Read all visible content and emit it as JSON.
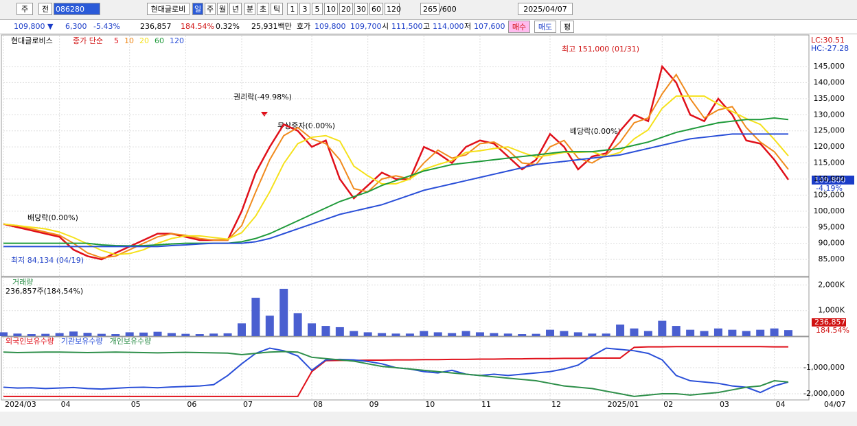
{
  "toolbar": {
    "period_code": "주",
    "mode": "전",
    "code": "086280",
    "name": "현대글로비",
    "tabs": [
      "일",
      "주",
      "월",
      "년",
      "분",
      "초",
      "틱"
    ],
    "intervals": [
      "1",
      "3",
      "5",
      "10",
      "20",
      "30",
      "60",
      "120"
    ],
    "count": "265",
    "count_max": "/600",
    "date": "2025/04/07"
  },
  "quote": {
    "price": "109,800 ▼",
    "change": "6,300",
    "change_pct": "-5.43%",
    "volume": "236,857",
    "volume_ratio": "184.54%",
    "turnover": "0.32%",
    "amount": "25,931백만",
    "ask_label": "호가",
    "ask": "109,800",
    "bid": "109,700",
    "open_label": "시",
    "open": "111,500",
    "high_label": "고",
    "high": "114,000",
    "low_label": "저",
    "low": "107,600",
    "buy": "매수",
    "sell": "매도",
    "avg": "평"
  },
  "chart_data": [
    {
      "type": "line",
      "title": "현대글로비스",
      "legend_title": "종가 단순",
      "lc": "LC:30.51",
      "hc": "HC:-27.28",
      "price_tag": "109,800",
      "change_tag": "-4.19%",
      "annotations": {
        "rights": "권리락(-49.98%)",
        "bonus": "무상증자(0.00%)",
        "div1": "배당락(0.00%)",
        "div2": "배당락(0.00%)",
        "high": "최고 151,000 (01/31)",
        "low": "최저 84,134 (04/19)"
      },
      "ylim": [
        79900,
        154600
      ],
      "grid": true,
      "yticks": [
        {
          "value": 85000,
          "label": "85,000"
        },
        {
          "value": 90000,
          "label": "90,000"
        },
        {
          "value": 95000,
          "label": "95,000"
        },
        {
          "value": 100000,
          "label": "100,000"
        },
        {
          "value": 105000,
          "label": "105,000"
        },
        {
          "value": 110000,
          "label": "110,000"
        },
        {
          "value": 115000,
          "label": "115,000"
        },
        {
          "value": 120000,
          "label": "120,000"
        },
        {
          "value": 125000,
          "label": "125,000"
        },
        {
          "value": 130000,
          "label": "130,000"
        },
        {
          "value": 135000,
          "label": "135,000"
        },
        {
          "value": 140000,
          "label": "140,000"
        },
        {
          "value": 145000,
          "label": "145,000"
        }
      ],
      "series": [
        {
          "name": "5",
          "color": "#e0101a",
          "values": [
            96000,
            95000,
            94000,
            93000,
            92000,
            88000,
            86000,
            85000,
            87000,
            89000,
            91000,
            93000,
            93000,
            92000,
            91000,
            91000,
            91000,
            100000,
            112000,
            120000,
            127000,
            125000,
            120000,
            122000,
            110000,
            104000,
            108000,
            112000,
            110000,
            110000,
            120000,
            118000,
            115000,
            120000,
            122000,
            121000,
            117000,
            113000,
            116000,
            124000,
            120000,
            113000,
            117000,
            118000,
            125000,
            130000,
            128000,
            145000,
            140000,
            130000,
            128000,
            135000,
            130000,
            122000,
            121000,
            116000,
            109800
          ]
        },
        {
          "name": "10",
          "color": "#f08a1c",
          "values": [
            96000,
            95500,
            94500,
            93500,
            92500,
            90000,
            87000,
            85500,
            86000,
            88000,
            90000,
            92000,
            93000,
            92500,
            91500,
            91000,
            91000,
            95500,
            106000,
            116000,
            123500,
            126000,
            122500,
            121000,
            116000,
            107000,
            106000,
            110000,
            111000,
            110000,
            115000,
            119000,
            116500,
            117500,
            121000,
            121500,
            119000,
            115000,
            114500,
            120000,
            122000,
            116500,
            115000,
            117500,
            121500,
            127500,
            129000,
            136500,
            142500,
            135000,
            129000,
            131500,
            132500,
            126000,
            121500,
            118500,
            113000
          ]
        },
        {
          "name": "20",
          "color": "#f5e11a",
          "values": [
            96000,
            95500,
            95000,
            94500,
            93500,
            91800,
            89800,
            87800,
            86500,
            86800,
            88000,
            90000,
            91500,
            92300,
            92300,
            91800,
            91300,
            93300,
            98500,
            106000,
            114800,
            121000,
            123000,
            123500,
            121800,
            114000,
            111000,
            108500,
            108500,
            110000,
            113000,
            114500,
            115800,
            118300,
            118800,
            119500,
            120000,
            118300,
            116800,
            117500,
            118300,
            118300,
            118500,
            117000,
            118300,
            122500,
            125300,
            132000,
            135800,
            135800,
            135800,
            133300,
            131000,
            128800,
            127000,
            122300,
            117200
          ]
        },
        {
          "name": "60",
          "color": "#1f9a3a",
          "values": [
            90000,
            90000,
            90000,
            90000,
            90000,
            90000,
            90000,
            89500,
            89300,
            89200,
            89300,
            89500,
            89800,
            90000,
            90000,
            90000,
            90000,
            90500,
            91500,
            93000,
            95000,
            97000,
            99000,
            101000,
            103000,
            104500,
            106000,
            108000,
            109500,
            111000,
            112500,
            113500,
            114500,
            115000,
            115500,
            116000,
            116500,
            117000,
            117500,
            118000,
            118500,
            118500,
            118500,
            119000,
            119500,
            120500,
            121500,
            123000,
            124500,
            125500,
            126500,
            127500,
            128000,
            128500,
            128500,
            129000,
            128500
          ]
        },
        {
          "name": "120",
          "color": "#2a4fd8",
          "values": [
            89000,
            89000,
            89000,
            89000,
            89000,
            89000,
            89000,
            89000,
            89000,
            89000,
            89000,
            89000,
            89300,
            89500,
            89800,
            90000,
            90000,
            90000,
            90500,
            91500,
            93000,
            94500,
            96000,
            97500,
            99000,
            100000,
            101000,
            102000,
            103500,
            105000,
            106500,
            107500,
            108500,
            109500,
            110500,
            111500,
            112500,
            113500,
            114500,
            115000,
            115500,
            116000,
            116500,
            117000,
            117500,
            118500,
            119500,
            120500,
            121500,
            122500,
            123000,
            123500,
            124000,
            124000,
            124000,
            124000,
            124000
          ]
        }
      ]
    },
    {
      "type": "bar",
      "title": "거래량",
      "subtitle": "236,857주(184,54%)",
      "volume_tag": "236,857",
      "ratio_tag": "184.54%",
      "color": "#4a5fd0",
      "ylim": [
        0,
        2305
      ],
      "yticks": [
        {
          "value": 1000,
          "label": "1,000K"
        },
        {
          "value": 2000,
          "label": "2,000K"
        }
      ],
      "values": [
        150,
        100,
        80,
        90,
        120,
        180,
        130,
        90,
        80,
        150,
        140,
        170,
        120,
        90,
        80,
        100,
        110,
        500,
        1500,
        800,
        1850,
        900,
        500,
        400,
        350,
        200,
        150,
        120,
        100,
        100,
        200,
        150,
        120,
        200,
        150,
        120,
        100,
        80,
        90,
        250,
        200,
        150,
        100,
        100,
        450,
        300,
        200,
        600,
        400,
        250,
        200,
        300,
        250,
        200,
        250,
        300,
        236.857
      ]
    },
    {
      "type": "line",
      "ylim": [
        -2210000,
        158000
      ],
      "yticks": [
        {
          "value": -1000000,
          "label": "-1,000,000"
        },
        {
          "value": -2000000,
          "label": "-2,000,000"
        }
      ],
      "categories": [
        "2024/03",
        null,
        null,
        null,
        "04",
        null,
        null,
        null,
        null,
        "05",
        null,
        null,
        null,
        "06",
        null,
        null,
        null,
        "07",
        null,
        null,
        null,
        null,
        "08",
        null,
        null,
        null,
        "09",
        null,
        null,
        null,
        "10",
        null,
        null,
        null,
        "11",
        null,
        null,
        null,
        null,
        "12",
        null,
        null,
        null,
        "2025/01",
        null,
        null,
        null,
        "02",
        null,
        null,
        null,
        "03",
        null,
        null,
        null,
        "04",
        null
      ],
      "last_date": "04/07",
      "series": [
        {
          "name": "외국인보유수량",
          "color": "#e0101a",
          "values": [
            -2100000,
            -2100000,
            -2100000,
            -2100000,
            -2100000,
            -2100000,
            -2100000,
            -2100000,
            -2100000,
            -2100000,
            -2100000,
            -2100000,
            -2100000,
            -2100000,
            -2100000,
            -2100000,
            -2100000,
            -2100000,
            -2100000,
            -2100000,
            -2100000,
            -2100000,
            -1150000,
            -730000,
            -720000,
            -720000,
            -710000,
            -710000,
            -700000,
            -700000,
            -690000,
            -690000,
            -680000,
            -680000,
            -670000,
            -670000,
            -660000,
            -660000,
            -650000,
            -650000,
            -640000,
            -640000,
            -630000,
            -630000,
            -630000,
            -220000,
            -200000,
            -200000,
            -190000,
            -190000,
            -190000,
            -190000,
            -190000,
            -190000,
            -190000,
            -200000,
            -200000
          ]
        },
        {
          "name": "기관보유수량",
          "color": "#2a4fd8",
          "values": [
            -1750000,
            -1780000,
            -1770000,
            -1800000,
            -1780000,
            -1760000,
            -1800000,
            -1820000,
            -1790000,
            -1760000,
            -1750000,
            -1770000,
            -1740000,
            -1720000,
            -1700000,
            -1650000,
            -1300000,
            -850000,
            -450000,
            -250000,
            -350000,
            -550000,
            -1100000,
            -700000,
            -680000,
            -700000,
            -760000,
            -850000,
            -1000000,
            -1050000,
            -1150000,
            -1200000,
            -1100000,
            -1250000,
            -1300000,
            -1250000,
            -1300000,
            -1250000,
            -1200000,
            -1150000,
            -1050000,
            -900000,
            -550000,
            -250000,
            -300000,
            -350000,
            -450000,
            -700000,
            -1300000,
            -1500000,
            -1550000,
            -1600000,
            -1700000,
            -1750000,
            -1950000,
            -1700000,
            -1550000
          ]
        },
        {
          "name": "개인보유수량",
          "color": "#2e8f4a",
          "values": [
            -400000,
            -420000,
            -410000,
            -400000,
            -400000,
            -410000,
            -420000,
            -410000,
            -400000,
            -410000,
            -420000,
            -430000,
            -420000,
            -410000,
            -420000,
            -430000,
            -440000,
            -500000,
            -450000,
            -400000,
            -380000,
            -400000,
            -600000,
            -650000,
            -700000,
            -750000,
            -850000,
            -950000,
            -1000000,
            -1050000,
            -1100000,
            -1150000,
            -1200000,
            -1250000,
            -1300000,
            -1350000,
            -1400000,
            -1450000,
            -1500000,
            -1600000,
            -1700000,
            -1750000,
            -1800000,
            -1900000,
            -2000000,
            -2100000,
            -2050000,
            -2000000,
            -2000000,
            -2050000,
            -2000000,
            -1950000,
            -1850000,
            -1750000,
            -1700000,
            -1500000,
            -1550000
          ]
        }
      ]
    }
  ]
}
